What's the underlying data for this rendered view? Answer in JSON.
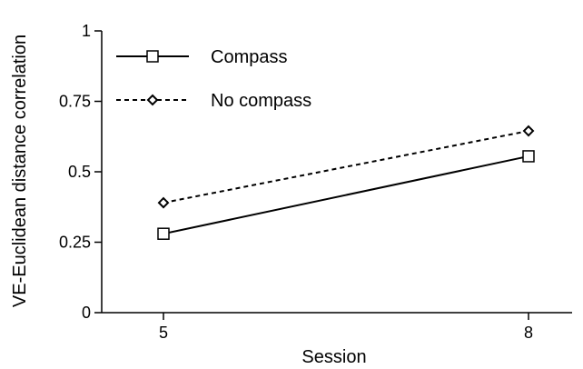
{
  "chart_data": {
    "type": "line",
    "xlabel": "Session",
    "ylabel": "VE-Euclidean distance correlation",
    "x": [
      5,
      8
    ],
    "xticks": [
      "5",
      "8"
    ],
    "ylim": [
      0,
      1
    ],
    "yticks": [
      "0",
      "0.25",
      "0.5",
      "0.75",
      "1"
    ],
    "grid": false,
    "legend_position": "top-left",
    "series": [
      {
        "name": "Compass",
        "values": [
          0.28,
          0.555
        ],
        "line_style": "solid",
        "marker": "square",
        "color": "#000000"
      },
      {
        "name": "No compass",
        "values": [
          0.39,
          0.645
        ],
        "line_style": "dashed",
        "marker": "diamond",
        "color": "#000000"
      }
    ]
  }
}
